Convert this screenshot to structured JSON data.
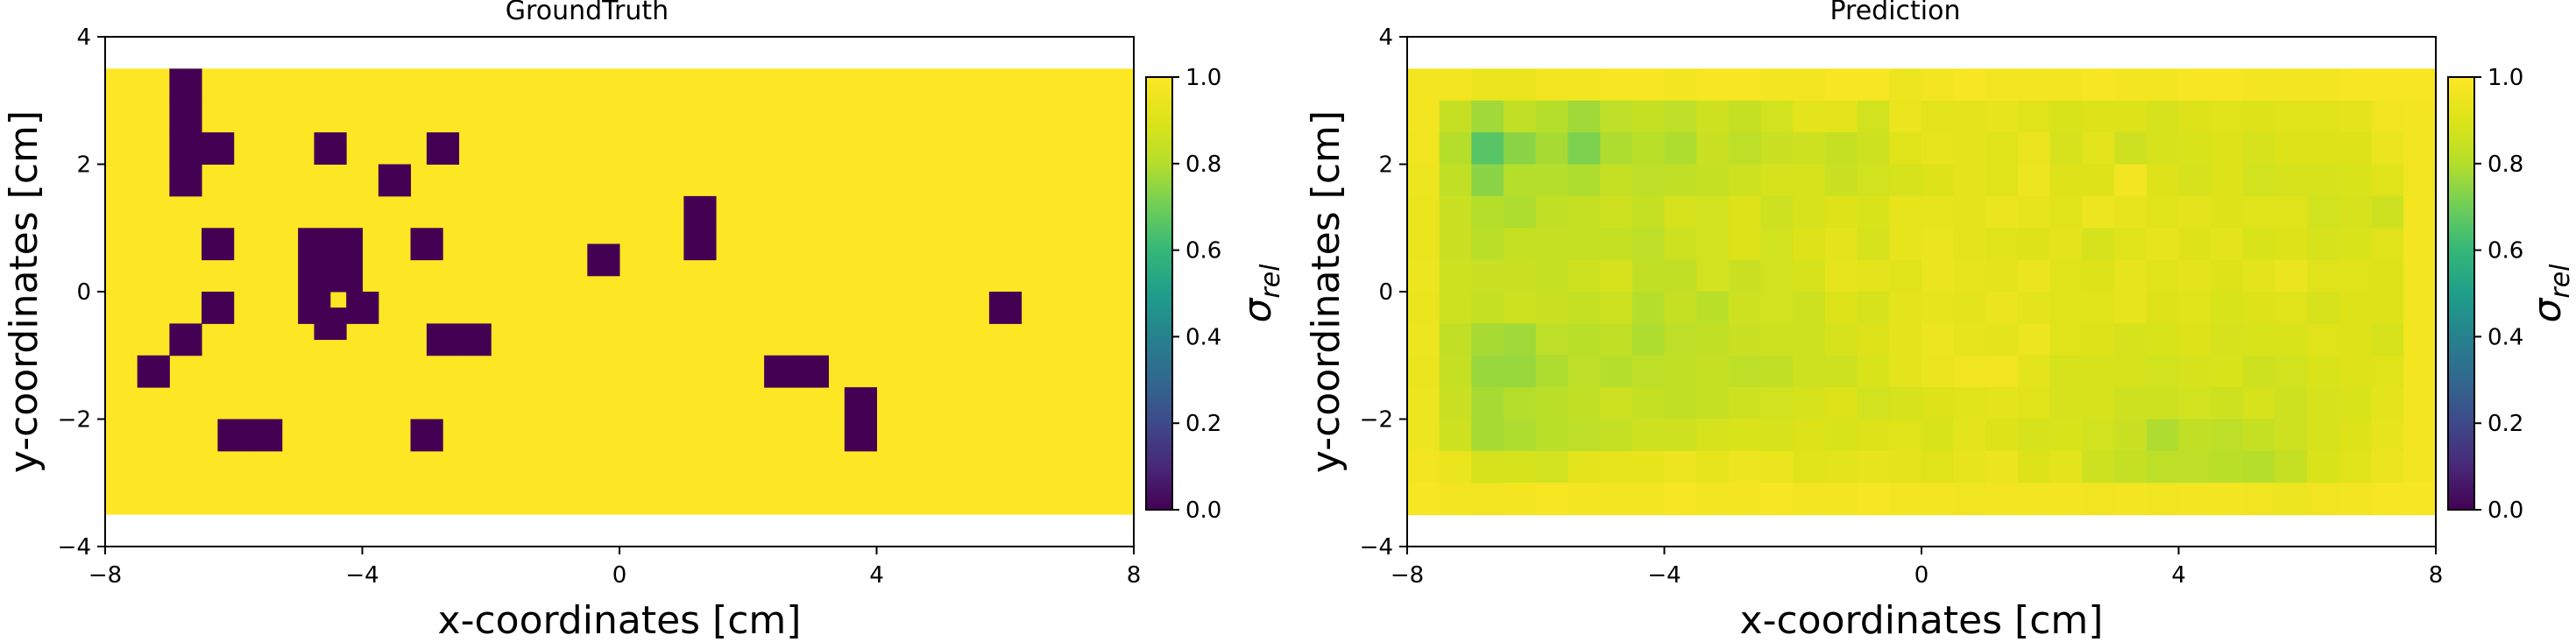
{
  "chart_data": [
    {
      "type": "heatmap",
      "title": "GroundTruth",
      "xlabel": "x-coordinates [cm]",
      "ylabel": "y-coordinates [cm]",
      "xlim": [
        -8,
        8
      ],
      "ylim": [
        -4,
        4
      ],
      "xticks": [
        -8,
        -4,
        0,
        4,
        8
      ],
      "yticks": [
        -4,
        -2,
        0,
        2,
        4
      ],
      "x_tick_labels": [
        "−8",
        "−4",
        "0",
        "4",
        "8"
      ],
      "y_tick_labels": [
        "−4",
        "−2",
        "0",
        "2",
        "4"
      ],
      "extent": {
        "x": [
          -8,
          8
        ],
        "y": [
          -3.5,
          3.5
        ]
      },
      "grid": {
        "cols": 32,
        "rows": 14,
        "cell_size_cm": 0.5
      },
      "default_value": 1.0,
      "cells_zero_x_y": [
        [
          -6.75,
          3.25
        ],
        [
          -6.75,
          2.75
        ],
        [
          -6.25,
          2.25
        ],
        [
          -6.75,
          2.25
        ],
        [
          -4.5,
          2.25
        ],
        [
          -2.75,
          2.25
        ],
        [
          -3.5,
          1.75
        ],
        [
          -6.75,
          1.75
        ],
        [
          1.25,
          1.25
        ],
        [
          1.25,
          0.75
        ],
        [
          -6.25,
          0.75
        ],
        [
          -4.75,
          0.75
        ],
        [
          -4.25,
          0.75
        ],
        [
          -3.0,
          0.75
        ],
        [
          -4.75,
          0.25
        ],
        [
          -4.25,
          0.25
        ],
        [
          -0.25,
          0.5
        ],
        [
          -6.25,
          -0.25
        ],
        [
          -4.75,
          -0.25
        ],
        [
          -4.0,
          -0.25
        ],
        [
          6.0,
          -0.25
        ],
        [
          -4.5,
          -0.5
        ],
        [
          -6.75,
          -0.75
        ],
        [
          -2.75,
          -0.75
        ],
        [
          -2.25,
          -0.75
        ],
        [
          -7.25,
          -1.25
        ],
        [
          2.5,
          -1.25
        ],
        [
          3.0,
          -1.25
        ],
        [
          3.75,
          -1.75
        ],
        [
          -6.0,
          -2.25
        ],
        [
          -5.5,
          -2.25
        ],
        [
          -3.0,
          -2.25
        ],
        [
          3.75,
          -2.25
        ]
      ],
      "colorbar": {
        "label": "σ_rel",
        "label_main": "σ",
        "label_sub": "rel",
        "range": [
          0,
          1
        ],
        "ticks": [
          "0.0",
          "0.2",
          "0.4",
          "0.6",
          "0.8",
          "1.0"
        ],
        "colormap": "viridis"
      }
    },
    {
      "type": "heatmap",
      "title": "Prediction",
      "xlabel": "x-coordinates [cm]",
      "ylabel": "y-coordinates [cm]",
      "xlim": [
        -8,
        8
      ],
      "ylim": [
        -4,
        4
      ],
      "xticks": [
        -8,
        -4,
        0,
        4,
        8
      ],
      "yticks": [
        -4,
        -2,
        0,
        2,
        4
      ],
      "x_tick_labels": [
        "−8",
        "−4",
        "0",
        "4",
        "8"
      ],
      "y_tick_labels": [
        "−4",
        "−2",
        "0",
        "2",
        "4"
      ],
      "extent": {
        "x": [
          -8,
          8
        ],
        "y": [
          -3.5,
          3.5
        ]
      },
      "grid": {
        "cols": 32,
        "rows": 14,
        "cell_size_cm": 0.5
      },
      "values_rows_top_to_bottom": [
        [
          0.97,
          0.97,
          0.94,
          0.94,
          0.97,
          0.97,
          0.98,
          0.98,
          0.97,
          0.98,
          0.98,
          0.97,
          0.97,
          0.98,
          0.98,
          0.95,
          0.97,
          0.98,
          0.97,
          0.97,
          0.97,
          0.98,
          0.97,
          0.97,
          0.98,
          0.98,
          0.97,
          0.97,
          0.97,
          0.98,
          0.98,
          0.98
        ],
        [
          0.97,
          0.84,
          0.77,
          0.83,
          0.8,
          0.77,
          0.82,
          0.84,
          0.82,
          0.86,
          0.84,
          0.87,
          0.92,
          0.92,
          0.87,
          0.94,
          0.92,
          0.92,
          0.93,
          0.91,
          0.89,
          0.9,
          0.9,
          0.88,
          0.9,
          0.91,
          0.9,
          0.91,
          0.91,
          0.92,
          0.96,
          0.97
        ],
        [
          0.96,
          0.8,
          0.66,
          0.74,
          0.78,
          0.72,
          0.79,
          0.81,
          0.79,
          0.85,
          0.82,
          0.85,
          0.86,
          0.84,
          0.86,
          0.91,
          0.93,
          0.92,
          0.91,
          0.94,
          0.88,
          0.92,
          0.86,
          0.88,
          0.89,
          0.9,
          0.88,
          0.9,
          0.9,
          0.9,
          0.94,
          0.97
        ],
        [
          0.95,
          0.83,
          0.74,
          0.8,
          0.8,
          0.79,
          0.84,
          0.82,
          0.83,
          0.84,
          0.86,
          0.88,
          0.88,
          0.85,
          0.87,
          0.88,
          0.9,
          0.92,
          0.91,
          0.95,
          0.9,
          0.9,
          0.97,
          0.9,
          0.88,
          0.9,
          0.87,
          0.88,
          0.88,
          0.89,
          0.91,
          0.96
        ],
        [
          0.94,
          0.85,
          0.8,
          0.79,
          0.83,
          0.84,
          0.86,
          0.84,
          0.88,
          0.87,
          0.9,
          0.86,
          0.88,
          0.9,
          0.89,
          0.93,
          0.93,
          0.92,
          0.94,
          0.93,
          0.91,
          0.95,
          0.93,
          0.91,
          0.92,
          0.9,
          0.91,
          0.91,
          0.87,
          0.88,
          0.86,
          0.97
        ],
        [
          0.94,
          0.85,
          0.81,
          0.84,
          0.84,
          0.84,
          0.84,
          0.82,
          0.86,
          0.87,
          0.9,
          0.87,
          0.9,
          0.92,
          0.88,
          0.93,
          0.94,
          0.92,
          0.91,
          0.9,
          0.92,
          0.88,
          0.91,
          0.93,
          0.9,
          0.92,
          0.89,
          0.9,
          0.88,
          0.89,
          0.91,
          0.97
        ],
        [
          0.95,
          0.86,
          0.85,
          0.85,
          0.84,
          0.86,
          0.88,
          0.83,
          0.83,
          0.87,
          0.85,
          0.87,
          0.88,
          0.93,
          0.92,
          0.91,
          0.94,
          0.93,
          0.92,
          0.94,
          0.91,
          0.9,
          0.93,
          0.91,
          0.92,
          0.9,
          0.92,
          0.94,
          0.91,
          0.91,
          0.9,
          0.97
        ],
        [
          0.94,
          0.86,
          0.84,
          0.86,
          0.85,
          0.84,
          0.86,
          0.8,
          0.84,
          0.81,
          0.86,
          0.87,
          0.86,
          0.9,
          0.88,
          0.92,
          0.93,
          0.92,
          0.94,
          0.92,
          0.91,
          0.91,
          0.93,
          0.9,
          0.91,
          0.89,
          0.9,
          0.91,
          0.88,
          0.9,
          0.9,
          0.97
        ],
        [
          0.95,
          0.83,
          0.78,
          0.77,
          0.82,
          0.81,
          0.83,
          0.79,
          0.82,
          0.83,
          0.85,
          0.86,
          0.86,
          0.88,
          0.9,
          0.92,
          0.95,
          0.93,
          0.92,
          0.95,
          0.91,
          0.9,
          0.88,
          0.89,
          0.9,
          0.88,
          0.89,
          0.89,
          0.91,
          0.9,
          0.88,
          0.97
        ],
        [
          0.94,
          0.84,
          0.76,
          0.76,
          0.79,
          0.82,
          0.8,
          0.82,
          0.83,
          0.84,
          0.82,
          0.83,
          0.86,
          0.86,
          0.89,
          0.92,
          0.94,
          0.96,
          0.96,
          0.92,
          0.88,
          0.88,
          0.88,
          0.87,
          0.88,
          0.89,
          0.86,
          0.87,
          0.89,
          0.9,
          0.91,
          0.97
        ],
        [
          0.95,
          0.85,
          0.78,
          0.8,
          0.81,
          0.83,
          0.86,
          0.84,
          0.83,
          0.84,
          0.86,
          0.87,
          0.88,
          0.9,
          0.87,
          0.88,
          0.9,
          0.91,
          0.92,
          0.91,
          0.88,
          0.88,
          0.86,
          0.86,
          0.87,
          0.86,
          0.88,
          0.86,
          0.88,
          0.89,
          0.92,
          0.97
        ],
        [
          0.95,
          0.86,
          0.78,
          0.79,
          0.81,
          0.82,
          0.84,
          0.86,
          0.86,
          0.88,
          0.89,
          0.88,
          0.9,
          0.89,
          0.9,
          0.91,
          0.89,
          0.92,
          0.9,
          0.88,
          0.89,
          0.87,
          0.85,
          0.79,
          0.83,
          0.82,
          0.84,
          0.86,
          0.88,
          0.9,
          0.93,
          0.97
        ],
        [
          0.97,
          0.94,
          0.88,
          0.88,
          0.87,
          0.92,
          0.93,
          0.93,
          0.95,
          0.93,
          0.95,
          0.94,
          0.91,
          0.92,
          0.93,
          0.92,
          0.91,
          0.93,
          0.94,
          0.9,
          0.92,
          0.86,
          0.84,
          0.82,
          0.82,
          0.81,
          0.8,
          0.84,
          0.89,
          0.91,
          0.94,
          0.97
        ],
        [
          0.98,
          0.97,
          0.96,
          0.97,
          0.98,
          0.97,
          0.97,
          0.97,
          0.98,
          0.97,
          0.97,
          0.98,
          0.97,
          0.97,
          0.98,
          0.97,
          0.97,
          0.96,
          0.97,
          0.97,
          0.97,
          0.96,
          0.97,
          0.96,
          0.97,
          0.97,
          0.96,
          0.95,
          0.96,
          0.97,
          0.98,
          0.98
        ]
      ],
      "colorbar": {
        "label": "σ_rel",
        "label_main": "σ",
        "label_sub": "rel",
        "range": [
          0,
          1
        ],
        "ticks": [
          "0.0",
          "0.2",
          "0.4",
          "0.6",
          "0.8",
          "1.0"
        ],
        "colormap": "viridis"
      }
    }
  ]
}
